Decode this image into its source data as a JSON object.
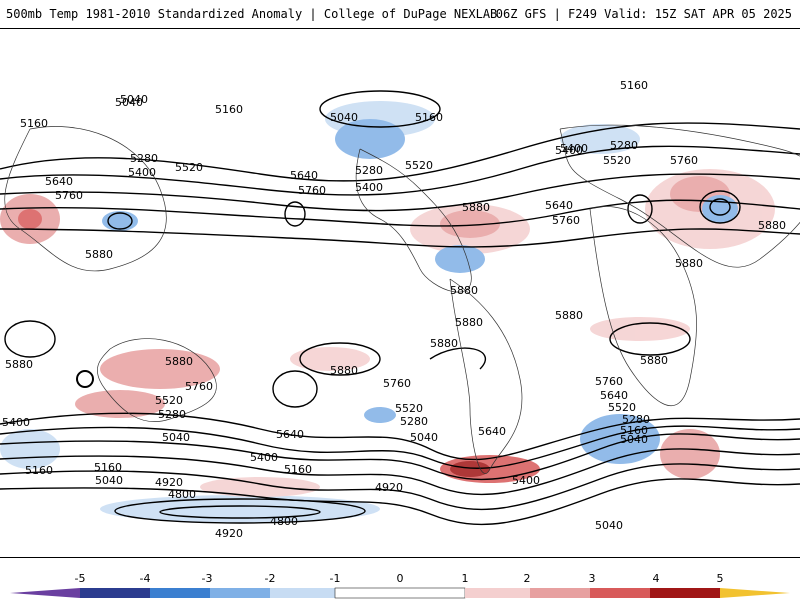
{
  "header": {
    "left": "500mb Temp 1981-2010 Standardized Anomaly | College of DuPage NEXLAB",
    "right": "06Z GFS | F249 Valid: 15Z SAT APR 05 2025"
  },
  "map": {
    "contour_labels": [
      "5160",
      "5040",
      "5160",
      "5040",
      "5160",
      "5280",
      "5520",
      "5400",
      "5280",
      "5400",
      "5640",
      "5760",
      "5640",
      "5760",
      "5520",
      "5880",
      "5880",
      "5880",
      "5400",
      "5520",
      "5280",
      "5760",
      "5880",
      "5760",
      "5640",
      "5880",
      "5880",
      "5880",
      "5880",
      "5880",
      "5880",
      "5760",
      "5520",
      "5280",
      "5040",
      "5400",
      "5640",
      "5160",
      "5040",
      "4920",
      "4800",
      "4920",
      "4800",
      "4920",
      "5040",
      "5160",
      "5400",
      "5520",
      "5280",
      "5760",
      "5640",
      "5520",
      "5280",
      "5160",
      "5040",
      "5400",
      "5640",
      "5040",
      "5760",
      "5880",
      "5400",
      "5160",
      "5040",
      "5880",
      "5160"
    ]
  },
  "colorbar": {
    "ticks": [
      "-5",
      "-4",
      "-3",
      "-2",
      "-1",
      "0",
      "1",
      "2",
      "3",
      "4",
      "5"
    ],
    "colors": {
      "neg5": "#6a3fa0",
      "neg4": "#2b3c8f",
      "neg3": "#3b7fd0",
      "neg2": "#7fb0e6",
      "neg1": "#c7dcf3",
      "zero": "#ffffff",
      "pos1": "#f4cfcf",
      "pos2": "#e7a0a0",
      "pos3": "#d85a5a",
      "pos4": "#a01616",
      "pos5": "#f2c230"
    }
  }
}
